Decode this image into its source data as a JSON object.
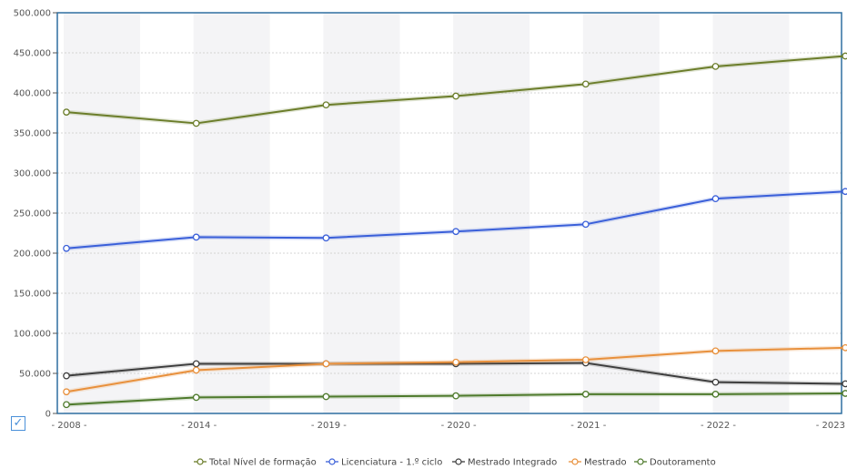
{
  "chart_data": {
    "type": "line",
    "title": "",
    "xlabel": "",
    "ylabel": "",
    "categories": [
      "2008",
      "2014",
      "2019",
      "2020",
      "2021",
      "2022",
      "2023"
    ],
    "x_tick_labels": [
      "- 2008 -",
      "- 2014 -",
      "- 2019 -",
      "- 2020 -",
      "- 2021 -",
      "- 2022 -",
      "- 2023"
    ],
    "ylim": [
      0,
      500000
    ],
    "y_ticks": [
      0,
      50000,
      100000,
      150000,
      200000,
      250000,
      300000,
      350000,
      400000,
      450000,
      500000
    ],
    "y_tick_labels": [
      "0",
      "50.000",
      "100.000",
      "150.000",
      "200.000",
      "250.000",
      "300.000",
      "350.000",
      "400.000",
      "450.000",
      "500.000"
    ],
    "grid": true,
    "legend_position": "bottom-center",
    "series": [
      {
        "name": "Total Nível de formação",
        "color": "#6b7d2a",
        "values": [
          376000,
          362000,
          385000,
          396000,
          411000,
          433000,
          446000
        ]
      },
      {
        "name": "Licenciatura - 1.º ciclo",
        "color": "#3a5fd9",
        "values": [
          206000,
          220000,
          219000,
          227000,
          236000,
          268000,
          277000
        ]
      },
      {
        "name": "Mestrado Integrado",
        "color": "#3d3d3d",
        "values": [
          47000,
          62000,
          62000,
          62000,
          63000,
          39000,
          37000
        ]
      },
      {
        "name": "Mestrado",
        "color": "#e8903c",
        "values": [
          27000,
          54000,
          62000,
          64000,
          67000,
          78000,
          82000
        ]
      },
      {
        "name": "Doutoramento",
        "color": "#4e7a2c",
        "values": [
          11000,
          20000,
          21000,
          22000,
          24000,
          24000,
          25000
        ]
      }
    ]
  },
  "ui": {
    "checkbox_glyph": "✓"
  }
}
